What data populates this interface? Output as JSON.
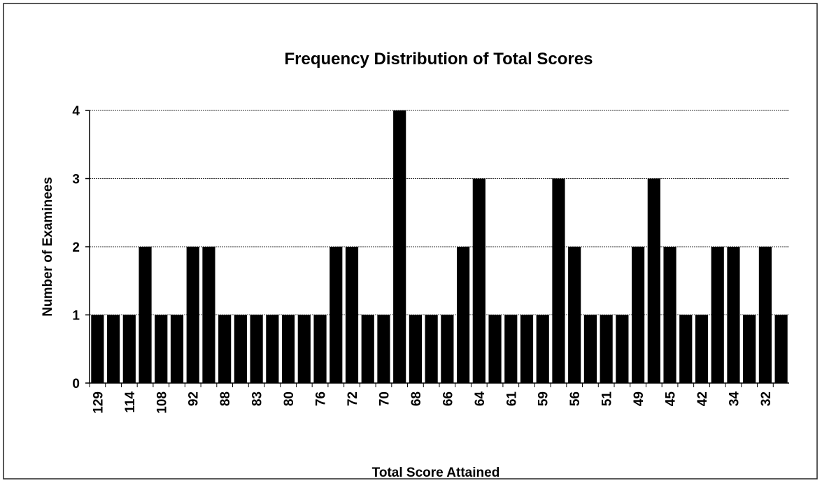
{
  "chart_data": {
    "type": "bar",
    "title": "Frequency Distribution of Total Scores",
    "x_label": "Total Score Attained",
    "y_label": "Number of Examinees",
    "categories": [
      "129",
      null,
      "114",
      null,
      "108",
      null,
      "92",
      null,
      "88",
      null,
      "83",
      null,
      "80",
      null,
      "76",
      null,
      "72",
      null,
      "70",
      null,
      "68",
      null,
      "66",
      null,
      "64",
      null,
      "61",
      null,
      "59",
      null,
      "56",
      null,
      "51",
      null,
      "49",
      null,
      "45",
      null,
      "42",
      null,
      "34",
      null,
      "32",
      null
    ],
    "values": [
      1,
      1,
      1,
      2,
      1,
      1,
      2,
      2,
      1,
      1,
      1,
      1,
      1,
      1,
      1,
      2,
      2,
      1,
      1,
      4,
      1,
      1,
      1,
      2,
      3,
      1,
      1,
      1,
      1,
      3,
      2,
      1,
      1,
      1,
      2,
      3,
      2,
      1,
      1,
      2,
      2,
      1,
      2,
      1
    ],
    "color": "#000000",
    "ylim": [
      0,
      4
    ],
    "yticks": [
      0,
      1,
      2,
      3,
      4
    ],
    "grid": true
  }
}
